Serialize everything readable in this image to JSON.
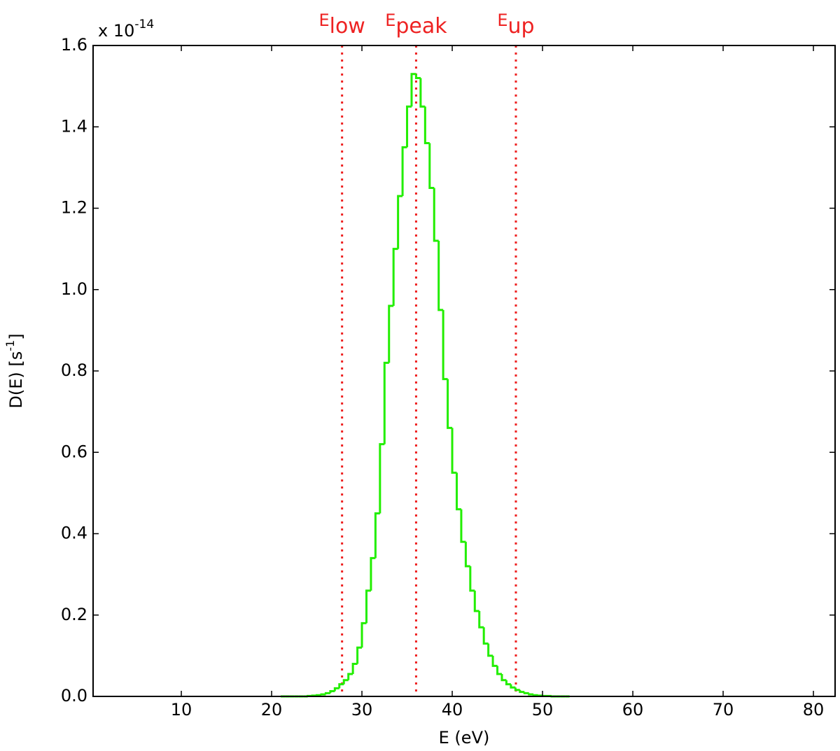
{
  "chart_data": {
    "type": "histogram",
    "xlabel": "E (eV)",
    "ylabel": {
      "text": "D(E)  [s",
      "sup": "-1",
      "end": "]"
    },
    "offset_text": {
      "text": "x 10",
      "sup": "-14"
    },
    "color": "#22ee00",
    "bins": [
      21,
      21.5,
      22,
      22.5,
      23,
      23.5,
      24,
      24.5,
      25,
      25.5,
      26,
      26.5,
      27,
      27.5,
      28,
      28.5,
      29,
      29.5,
      30,
      30.5,
      31,
      31.5,
      32,
      32.5,
      33,
      33.5,
      34,
      34.5,
      35,
      35.5,
      36,
      36.5,
      37,
      37.5,
      38,
      38.5,
      39,
      39.5,
      40,
      40.5,
      41,
      41.5,
      42,
      42.5,
      43,
      43.5,
      44,
      44.5,
      45,
      45.5,
      46,
      46.5,
      47,
      47.5,
      48,
      48.5,
      49,
      49.5,
      50,
      50.5,
      51,
      51.5,
      52,
      52.5,
      53
    ],
    "values": [
      0,
      0,
      0,
      0,
      0,
      0,
      0.001,
      0.002,
      0.003,
      0.005,
      0.008,
      0.013,
      0.02,
      0.03,
      0.04,
      0.055,
      0.08,
      0.12,
      0.18,
      0.26,
      0.34,
      0.45,
      0.62,
      0.82,
      0.96,
      1.1,
      1.23,
      1.35,
      1.45,
      1.53,
      1.52,
      1.45,
      1.36,
      1.25,
      1.12,
      0.95,
      0.78,
      0.66,
      0.55,
      0.46,
      0.38,
      0.32,
      0.26,
      0.21,
      0.17,
      0.13,
      0.1,
      0.075,
      0.055,
      0.04,
      0.03,
      0.022,
      0.016,
      0.011,
      0.008,
      0.005,
      0.003,
      0.002,
      0.001,
      0.001,
      0,
      0,
      0,
      0
    ],
    "vlines": [
      {
        "x": 27.8,
        "label": "E",
        "subscript": "low"
      },
      {
        "x": 36.0,
        "label": "E",
        "subscript": "peak"
      },
      {
        "x": 47.05,
        "label": "E",
        "subscript": "up"
      }
    ],
    "vline_color": "#ee2222",
    "xlim": [
      0.23,
      82.4
    ],
    "ylim": [
      0,
      1.6
    ],
    "xticks": [
      10,
      20,
      30,
      40,
      50,
      60,
      70,
      80
    ],
    "yticks": [
      {
        "value": 0,
        "label": "0.0"
      },
      0.2,
      0.4,
      0.6,
      0.8,
      {
        "value": 1,
        "label": "1.0"
      },
      1.2,
      1.4,
      1.6
    ]
  }
}
